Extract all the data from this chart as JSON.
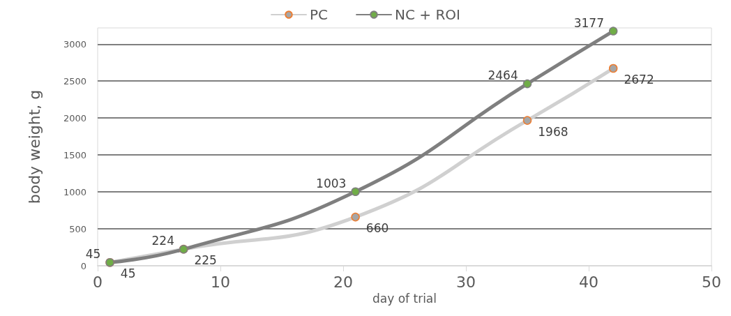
{
  "chart_data": {
    "type": "line",
    "xlabel": "day of trial",
    "ylabel": "body weight, g",
    "x": [
      1,
      7,
      21,
      35,
      42
    ],
    "series": [
      {
        "name": "PC",
        "color": "#d0d0d0",
        "values": [
          45,
          225,
          660,
          1968,
          2672
        ]
      },
      {
        "name": "NC + ROI",
        "color": "#7f7f7f",
        "values": [
          45,
          224,
          1003,
          2464,
          3177
        ]
      }
    ],
    "xlim": [
      0,
      50
    ],
    "xticks": [
      0,
      10,
      20,
      30,
      40,
      50
    ],
    "ylim": [
      0,
      3220
    ],
    "yticks": [
      0,
      500,
      1000,
      1500,
      2000,
      2500,
      3000
    ],
    "grid": "y",
    "legend": "top",
    "marker": "circle",
    "line_style": "solid",
    "data_labels": true
  }
}
